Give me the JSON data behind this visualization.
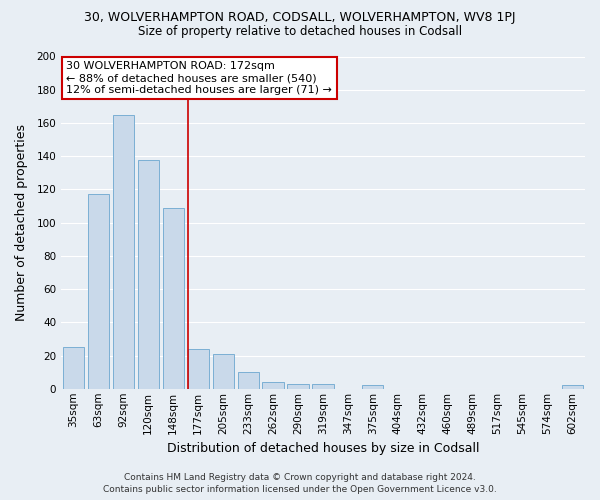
{
  "title": "30, WOLVERHAMPTON ROAD, CODSALL, WOLVERHAMPTON, WV8 1PJ",
  "subtitle": "Size of property relative to detached houses in Codsall",
  "xlabel": "Distribution of detached houses by size in Codsall",
  "ylabel": "Number of detached properties",
  "bar_labels": [
    "35sqm",
    "63sqm",
    "92sqm",
    "120sqm",
    "148sqm",
    "177sqm",
    "205sqm",
    "233sqm",
    "262sqm",
    "290sqm",
    "319sqm",
    "347sqm",
    "375sqm",
    "404sqm",
    "432sqm",
    "460sqm",
    "489sqm",
    "517sqm",
    "545sqm",
    "574sqm",
    "602sqm"
  ],
  "bar_values": [
    25,
    117,
    165,
    138,
    109,
    24,
    21,
    10,
    4,
    3,
    3,
    0,
    2,
    0,
    0,
    0,
    0,
    0,
    0,
    0,
    2
  ],
  "bar_color": "#c9d9ea",
  "bar_edge_color": "#7bafd4",
  "vline_index": 5,
  "vline_color": "#cc0000",
  "ylim": [
    0,
    200
  ],
  "yticks": [
    0,
    20,
    40,
    60,
    80,
    100,
    120,
    140,
    160,
    180,
    200
  ],
  "annotation_title": "30 WOLVERHAMPTON ROAD: 172sqm",
  "annotation_line1": "← 88% of detached houses are smaller (540)",
  "annotation_line2": "12% of semi-detached houses are larger (71) →",
  "footer_line1": "Contains HM Land Registry data © Crown copyright and database right 2024.",
  "footer_line2": "Contains public sector information licensed under the Open Government Licence v3.0.",
  "background_color": "#e8eef4",
  "grid_color": "#ffffff",
  "title_fontsize": 9,
  "subtitle_fontsize": 8.5,
  "xlabel_fontsize": 9,
  "ylabel_fontsize": 9,
  "tick_fontsize": 7.5,
  "footer_fontsize": 6.5,
  "annotation_fontsize": 8
}
